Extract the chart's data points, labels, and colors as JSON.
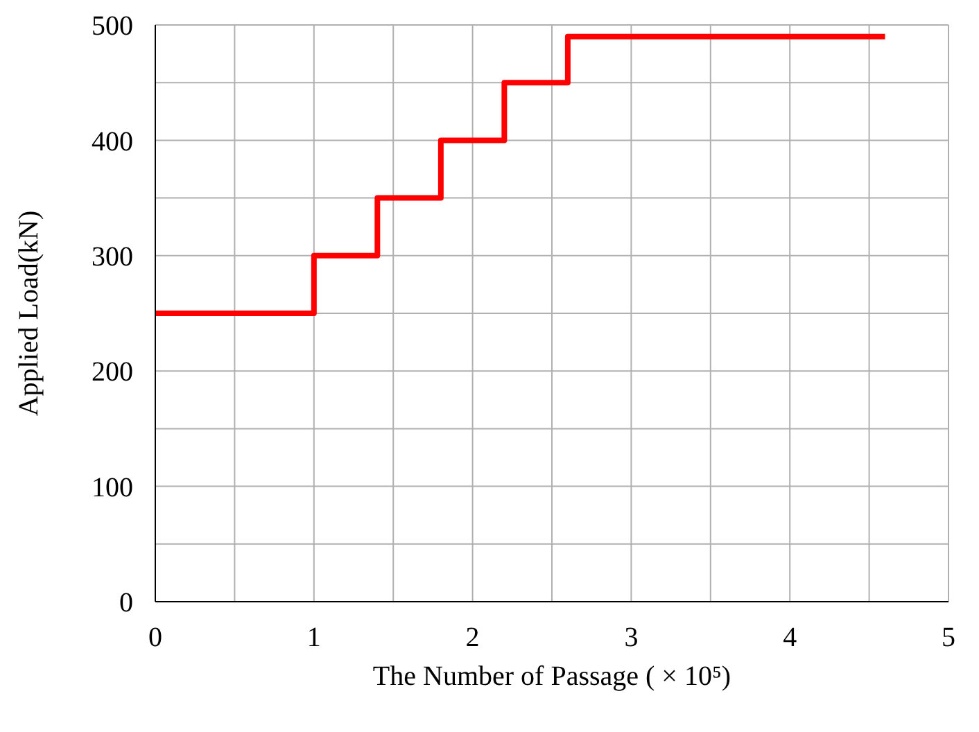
{
  "chart_data": {
    "type": "step",
    "xlabel": "The Number of Passage ( × 10⁵)",
    "ylabel": "Applied Load(kN)",
    "x": [
      0,
      1,
      1.4,
      1.8,
      2.2,
      2.6,
      4.6
    ],
    "series": [
      {
        "color": "#ff0000",
        "values": [
          250,
          300,
          350,
          400,
          450,
          490,
          490
        ]
      }
    ],
    "xlim": [
      0,
      5
    ],
    "xticks": [
      0,
      {
        "value": 0.5,
        "label": null
      },
      1,
      {
        "value": 1.5,
        "label": null
      },
      2,
      {
        "value": 2.5,
        "label": null
      },
      3,
      {
        "value": 3.5,
        "label": null
      },
      4,
      {
        "value": 4.5,
        "label": null
      },
      5
    ],
    "ylim": [
      0,
      500
    ],
    "yticks": [
      0,
      {
        "value": 50,
        "label": null
      },
      100,
      {
        "value": 150,
        "label": null
      },
      200,
      {
        "value": 250,
        "label": null
      },
      300,
      {
        "value": 350,
        "label": null
      },
      400,
      {
        "value": 450,
        "label": null
      },
      500
    ],
    "grid": true,
    "legend": false,
    "line_style": "solid",
    "marker": "none"
  }
}
